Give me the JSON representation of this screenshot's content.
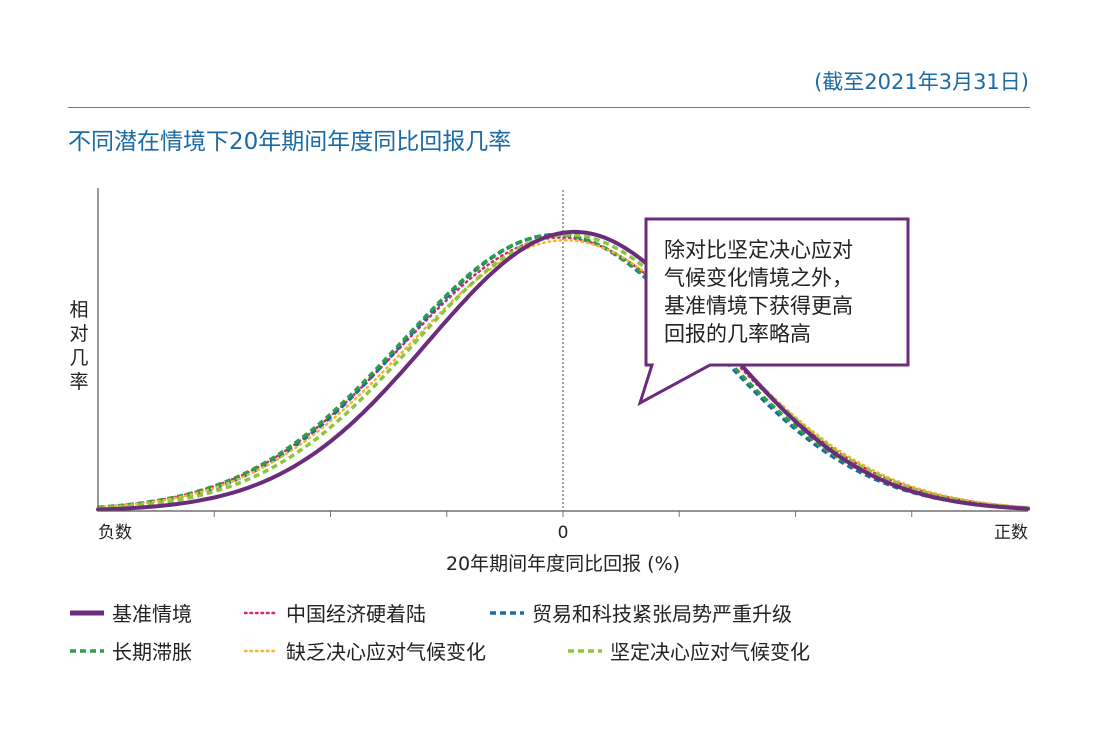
{
  "header": {
    "date_note": "(截至2021年3月31日)",
    "title": "不同潜在情境下20年期间年度同比回报几率"
  },
  "chart_data": {
    "type": "line",
    "title": "不同潜在情境下20年期间年度同比回报几率",
    "xlabel": "20年期间年度同比回报 (%)",
    "ylabel": "相对几率",
    "ylabel_chars": [
      "相",
      "对",
      "几",
      "率"
    ],
    "x_tick_labels": {
      "left": "负数",
      "center": "0",
      "right": "正数"
    },
    "xlim": [
      -10,
      10
    ],
    "ylim": [
      0,
      1.15
    ],
    "grid": false,
    "legend_position": "bottom",
    "annotation": {
      "lines": [
        "除对比坚定决心应对",
        "气候变化情境之外，",
        "基准情境下获得更高",
        "回报的几率略高"
      ],
      "points_to_series": "基准情境",
      "points_to_x": 1.65
    },
    "series": [
      {
        "name": "基准情境",
        "color": "#6b2d7b",
        "style": "solid",
        "mean": 0.25,
        "sd": 3.15,
        "peak": 1.0
      },
      {
        "name": "中国经济硬着陆",
        "color": "#e0245e",
        "style": "dotted",
        "mean": -0.05,
        "sd": 3.4,
        "peak": 0.98
      },
      {
        "name": "贸易和科技紧张局势严重升级",
        "color": "#1a6aa5",
        "style": "dashed",
        "mean": -0.15,
        "sd": 3.3,
        "peak": 0.99
      },
      {
        "name": "长期滞胀",
        "color": "#2e9e46",
        "style": "dashed",
        "mean": -0.15,
        "sd": 3.35,
        "peak": 0.99
      },
      {
        "name": "缺乏决心应对气候变化",
        "color": "#f2b632",
        "style": "dotted",
        "mean": 0.05,
        "sd": 3.4,
        "peak": 0.97
      },
      {
        "name": "坚定决心应对气候变化",
        "color": "#8cc63f",
        "style": "dashed",
        "mean": 0.1,
        "sd": 3.3,
        "peak": 0.99
      }
    ]
  }
}
